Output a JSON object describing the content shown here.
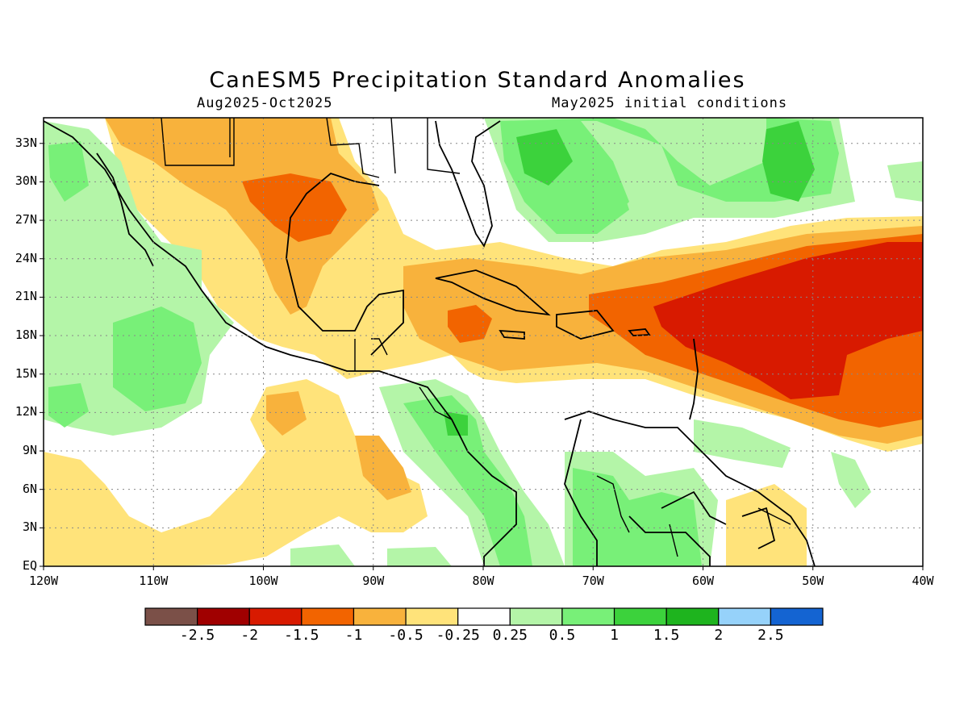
{
  "title": "CanESM5 Precipitation Standard Anomalies",
  "subtitle_left": "Aug2025-Oct2025",
  "subtitle_right": "May2025 initial conditions",
  "map": {
    "lon_range": [
      -120,
      -40
    ],
    "lat_range": [
      0,
      35
    ],
    "lat_labels": [
      "EQ",
      "3N",
      "6N",
      "9N",
      "12N",
      "15N",
      "18N",
      "21N",
      "24N",
      "27N",
      "30N",
      "33N"
    ],
    "lon_labels": [
      "120W",
      "110W",
      "100W",
      "90W",
      "80W",
      "70W",
      "60W",
      "50W",
      "40W"
    ],
    "gridlines": "dotted"
  },
  "colorbar": {
    "colors": [
      "#7b5048",
      "#a00000",
      "#d81a00",
      "#f26400",
      "#f8b23c",
      "#ffe37a",
      "#ffffff",
      "#b4f5a8",
      "#78f078",
      "#3cd23c",
      "#1eb41e",
      "#96d2fa",
      "#1464d2"
    ],
    "labels": [
      "-2.5",
      "-2",
      "-1.5",
      "-1",
      "-0.5",
      "-0.25",
      "0.25",
      "0.5",
      "1",
      "1.5",
      "2",
      "2.5"
    ]
  }
}
